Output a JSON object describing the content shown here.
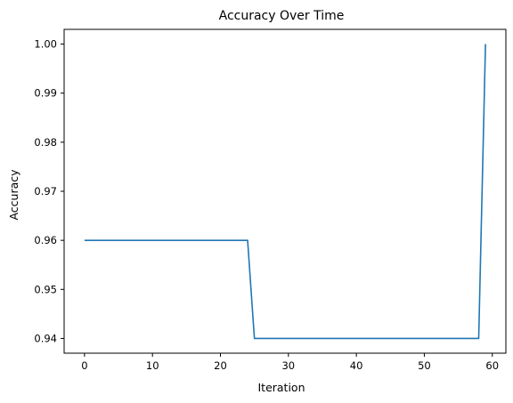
{
  "chart_data": {
    "type": "line",
    "title": "Accuracy Over Time",
    "xlabel": "Iteration",
    "ylabel": "Accuracy",
    "xlim": [
      -3,
      62
    ],
    "ylim": [
      0.937,
      1.003
    ],
    "xticks": [
      0,
      10,
      20,
      30,
      40,
      50,
      60
    ],
    "yticks": [
      0.94,
      0.95,
      0.96,
      0.97,
      0.98,
      0.99,
      1.0
    ],
    "xtick_labels": [
      "0",
      "10",
      "20",
      "30",
      "40",
      "50",
      "60"
    ],
    "ytick_labels": [
      "0.94",
      "0.95",
      "0.96",
      "0.97",
      "0.98",
      "0.99",
      "1.00"
    ],
    "grid": false,
    "line_color": "#1f77b4",
    "series": [
      {
        "x": [
          0,
          24,
          25,
          58,
          59
        ],
        "y": [
          0.96,
          0.96,
          0.94,
          0.94,
          1.0
        ]
      }
    ]
  }
}
